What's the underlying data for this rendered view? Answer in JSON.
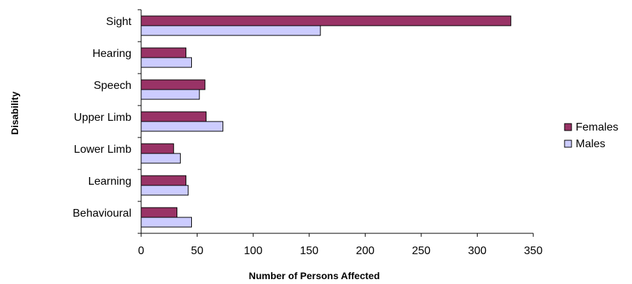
{
  "chart_data": {
    "type": "bar",
    "orientation": "horizontal",
    "title": "",
    "xlabel": "Number of Persons Affected",
    "ylabel": "Disability",
    "xlim": [
      0,
      350
    ],
    "xticks": [
      0,
      50,
      100,
      150,
      200,
      250,
      300,
      350
    ],
    "grid": false,
    "legend_position": "right",
    "categories": [
      "Sight",
      "Hearing",
      "Speech",
      "Upper Limb",
      "Lower Limb",
      "Learning",
      "Behavioural"
    ],
    "series": [
      {
        "name": "Females",
        "color": "#993366",
        "values": [
          330,
          40,
          57,
          58,
          29,
          40,
          32
        ]
      },
      {
        "name": "Males",
        "color": "#ccccff",
        "values": [
          160,
          45,
          52,
          73,
          35,
          42,
          45
        ]
      }
    ]
  }
}
